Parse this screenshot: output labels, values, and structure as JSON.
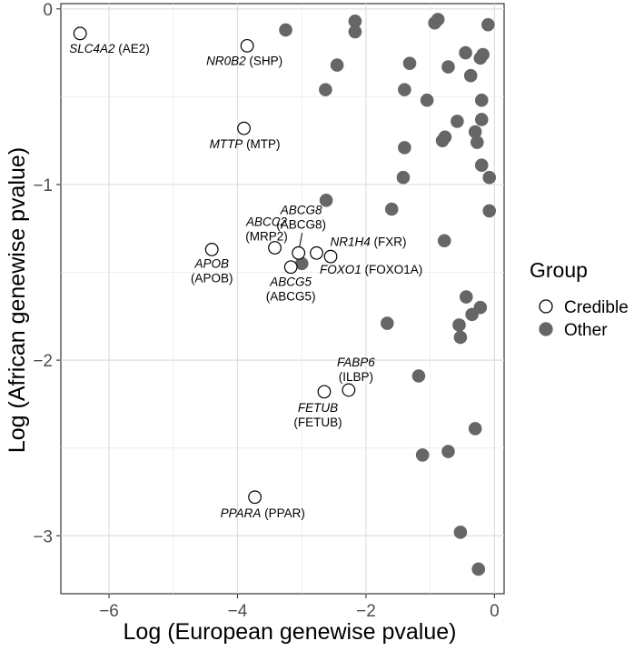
{
  "chart_data": {
    "type": "scatter",
    "xlabel": "Log (European genewise pvalue)",
    "ylabel": "Log (African genewise pvalue)",
    "xlim": [
      -6.75,
      0.15
    ],
    "ylim": [
      -3.33,
      0.03
    ],
    "x_ticks": [
      -6,
      -4,
      -2,
      0
    ],
    "y_ticks": [
      0,
      -1,
      -2,
      -3
    ],
    "x_tick_labels": [
      "−6",
      "−4",
      "−2",
      "0"
    ],
    "y_tick_labels": [
      "0",
      "−1",
      "−2",
      "−3"
    ],
    "grid": true,
    "legend": {
      "title": "Group",
      "position": "right",
      "entries": [
        {
          "name": "Credible",
          "fill": "#ffffff",
          "stroke": "#000000"
        },
        {
          "name": "Other",
          "fill": "#666666",
          "stroke": "#666666"
        }
      ]
    },
    "series": [
      {
        "name": "Credible",
        "points": [
          {
            "x": -6.45,
            "y": -0.14,
            "gene": "SLC4A2",
            "protein": "(AE2)"
          },
          {
            "x": -3.85,
            "y": -0.21,
            "gene": "NR0B2",
            "protein": "(SHP)"
          },
          {
            "x": -3.9,
            "y": -0.68,
            "gene": "MTTP",
            "protein": "(MTP)"
          },
          {
            "x": -4.4,
            "y": -1.37,
            "gene": "APOB",
            "protein": "(APOB)"
          },
          {
            "x": -3.42,
            "y": -1.36,
            "gene": "ABCC2",
            "protein": "(MRP2)"
          },
          {
            "x": -3.05,
            "y": -1.39,
            "gene": "ABCG8",
            "protein": "(ABCG8)"
          },
          {
            "x": -3.17,
            "y": -1.47,
            "gene": "ABCG5",
            "protein": "(ABCG5)"
          },
          {
            "x": -2.77,
            "y": -1.39,
            "gene": "NR1H4",
            "protein": "(FXR)"
          },
          {
            "x": -2.55,
            "y": -1.41,
            "gene": "FOXO1",
            "protein": "(FOXO1A)"
          },
          {
            "x": -2.27,
            "y": -2.17,
            "gene": "FABP6",
            "protein": "(ILBP)"
          },
          {
            "x": -2.65,
            "y": -2.18,
            "gene": "FETUB",
            "protein": "(FETUB)"
          },
          {
            "x": -3.73,
            "y": -2.78,
            "gene": "PPARA",
            "protein": "(PPAR)"
          }
        ]
      },
      {
        "name": "Other",
        "points": [
          {
            "x": -3.25,
            "y": -0.12
          },
          {
            "x": -2.17,
            "y": -0.07
          },
          {
            "x": -2.17,
            "y": -0.13
          },
          {
            "x": -2.45,
            "y": -0.32
          },
          {
            "x": -2.63,
            "y": -0.46
          },
          {
            "x": -1.32,
            "y": -0.31
          },
          {
            "x": -1.4,
            "y": -0.46
          },
          {
            "x": -0.93,
            "y": -0.08
          },
          {
            "x": -0.88,
            "y": -0.06
          },
          {
            "x": -0.1,
            "y": -0.09
          },
          {
            "x": -0.72,
            "y": -0.33
          },
          {
            "x": -1.05,
            "y": -0.52
          },
          {
            "x": -0.45,
            "y": -0.25
          },
          {
            "x": -0.37,
            "y": -0.38
          },
          {
            "x": -0.22,
            "y": -0.28
          },
          {
            "x": -0.18,
            "y": -0.26
          },
          {
            "x": -0.2,
            "y": -0.52
          },
          {
            "x": -0.2,
            "y": -0.63
          },
          {
            "x": -0.58,
            "y": -0.64
          },
          {
            "x": -0.3,
            "y": -0.7
          },
          {
            "x": -0.27,
            "y": -0.76
          },
          {
            "x": -0.77,
            "y": -0.73
          },
          {
            "x": -0.81,
            "y": -0.75
          },
          {
            "x": -1.4,
            "y": -0.79
          },
          {
            "x": -1.42,
            "y": -0.96
          },
          {
            "x": -0.2,
            "y": -0.89
          },
          {
            "x": -0.08,
            "y": -0.96
          },
          {
            "x": -2.62,
            "y": -1.09
          },
          {
            "x": -1.6,
            "y": -1.14
          },
          {
            "x": -0.08,
            "y": -1.15
          },
          {
            "x": -0.78,
            "y": -1.32
          },
          {
            "x": -3.0,
            "y": -1.45
          },
          {
            "x": -0.44,
            "y": -1.64
          },
          {
            "x": -0.22,
            "y": -1.7
          },
          {
            "x": -0.35,
            "y": -1.74
          },
          {
            "x": -1.67,
            "y": -1.79
          },
          {
            "x": -0.55,
            "y": -1.8
          },
          {
            "x": -0.53,
            "y": -1.87
          },
          {
            "x": -1.18,
            "y": -2.09
          },
          {
            "x": -0.3,
            "y": -2.39
          },
          {
            "x": -0.72,
            "y": -2.52
          },
          {
            "x": -1.12,
            "y": -2.54
          },
          {
            "x": -0.53,
            "y": -2.98
          },
          {
            "x": -0.25,
            "y": -3.19
          }
        ]
      }
    ]
  }
}
